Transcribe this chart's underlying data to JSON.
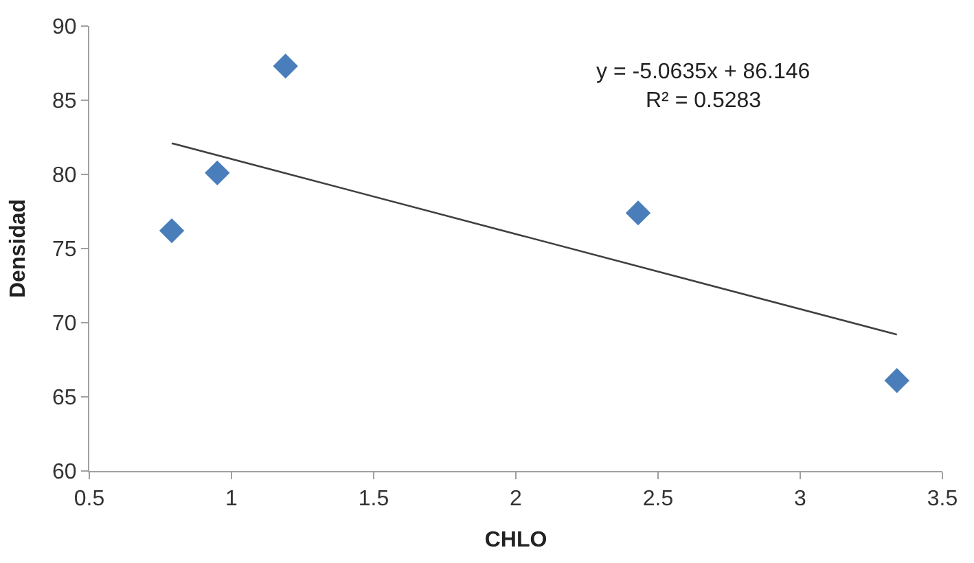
{
  "chart_data": {
    "type": "scatter",
    "xlabel": "CHLO",
    "ylabel": "Densidad",
    "xlim": [
      0.5,
      3.5
    ],
    "xticks": [
      0.5,
      1,
      1.5,
      2,
      2.5,
      3,
      3.5
    ],
    "ylim": [
      60,
      90
    ],
    "yticks": [
      60,
      65,
      70,
      75,
      80,
      85,
      90
    ],
    "legend": false,
    "series": [
      {
        "marker": "diamond",
        "color": "#4a7ebb",
        "x": [
          0.79,
          0.95,
          1.19,
          2.43,
          3.34
        ],
        "values": [
          76.2,
          80.1,
          87.3,
          77.4,
          66.1
        ]
      },
      {
        "type": "line",
        "marker": "none",
        "line_style": "solid",
        "color": "#404040",
        "x": [
          0.79,
          3.34
        ],
        "values": [
          82.1,
          69.2
        ]
      }
    ],
    "annotations": [
      "y = -5.0635x + 86.146",
      "R² = 0.5283"
    ]
  }
}
